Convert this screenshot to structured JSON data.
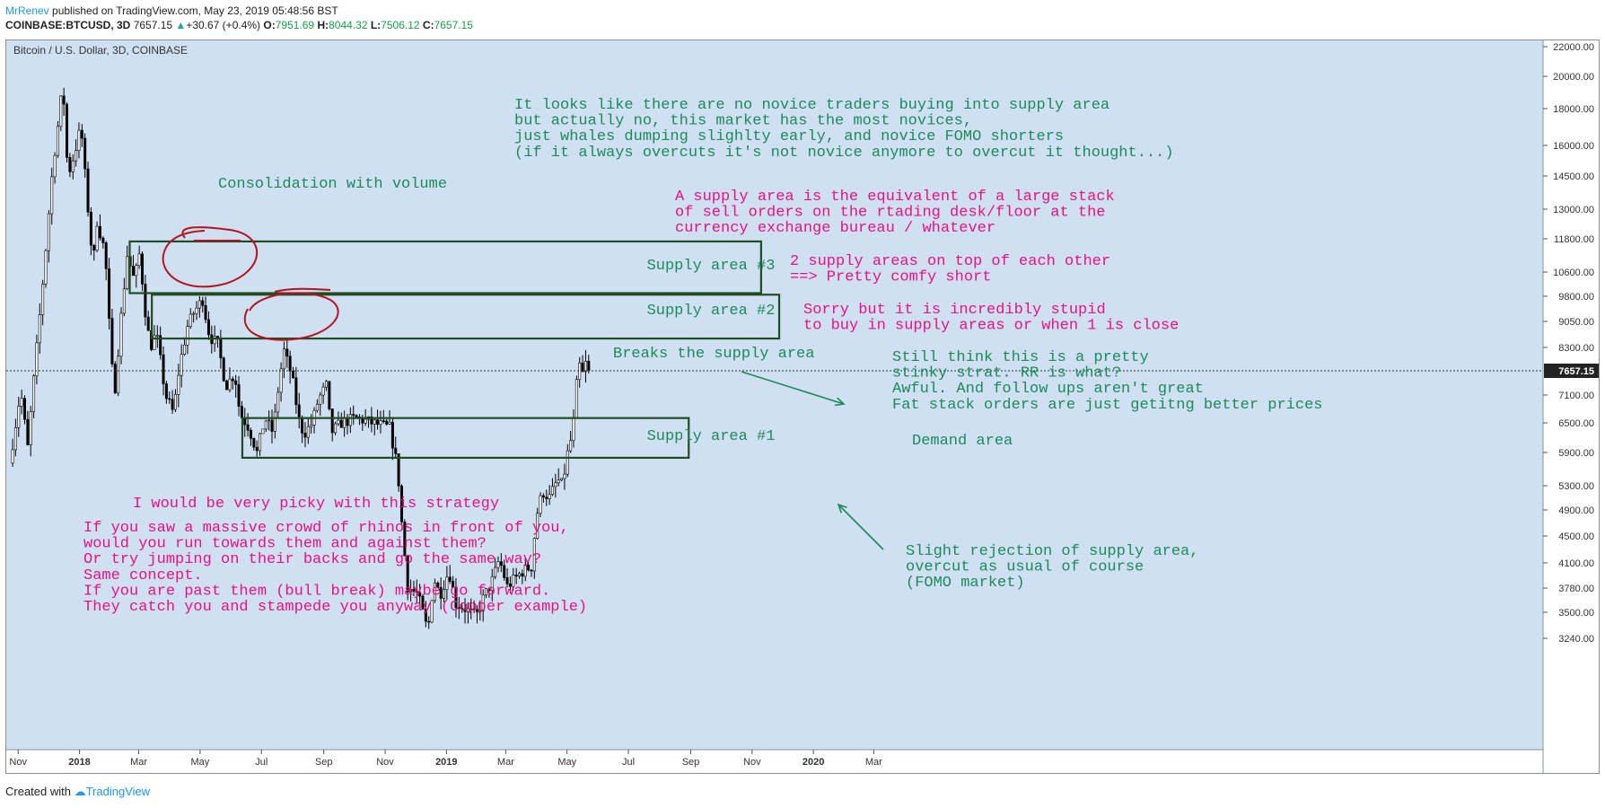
{
  "header": {
    "author": "MrRenev",
    "published": " published on TradingView.com, May 23, 2019 05:48:56 BST",
    "symbol": "COINBASE:BTCUSD, 3D ",
    "last": "7657.15",
    "change_arrow": "▲",
    "change": "+30.67 (+0.4%)",
    "o_label": " O:",
    "o": "7951.69",
    "h_label": " H:",
    "h": "8044.32",
    "l_label": " L:",
    "l": "7506.12",
    "c_label": " C:",
    "c": "7657.15"
  },
  "chart_title": "Bitcoin / U.S. Dollar, 3D, COINBASE",
  "footer": {
    "created": "Created with ",
    "brand": "TradingView"
  },
  "chart_data": {
    "type": "candlestick",
    "title": "Bitcoin / U.S. Dollar, 3D, COINBASE",
    "x_ticks": [
      "Nov",
      "2018",
      "Mar",
      "May",
      "Jul",
      "Sep",
      "Nov",
      "2019",
      "Mar",
      "May",
      "Jul",
      "Sep",
      "Nov",
      "2020",
      "Mar"
    ],
    "y_ticks": [
      "22000.00",
      "20000.00",
      "18000.00",
      "16000.00",
      "14500.00",
      "13000.00",
      "11800.00",
      "10600.00",
      "9800.00",
      "9050.00",
      "8300.00",
      "7100.00",
      "6500.00",
      "5900.00",
      "5300.00",
      "4900.00",
      "4500.00",
      "4100.00",
      "3780.00",
      "3500.00",
      "3240.00"
    ],
    "y_tick_values": [
      22000,
      20000,
      18000,
      16000,
      14500,
      13000,
      11800,
      10600,
      9800,
      9050,
      8300,
      7100,
      6500,
      5900,
      5300,
      4900,
      4500,
      4100,
      3780,
      3500,
      3240
    ],
    "scale": "log",
    "y_range": [
      3000,
      23000
    ],
    "last_price_label": "7657.15",
    "last_price": 7657.15,
    "price_path": [
      [
        "2017-10-25",
        5700
      ],
      [
        "2017-11-05",
        7200
      ],
      [
        "2017-11-12",
        6000
      ],
      [
        "2017-11-20",
        8000
      ],
      [
        "2017-11-29",
        11000
      ],
      [
        "2017-12-07",
        15000
      ],
      [
        "2017-12-12",
        17000
      ],
      [
        "2017-12-17",
        19500
      ],
      [
        "2017-12-22",
        14500
      ],
      [
        "2017-12-28",
        15500
      ],
      [
        "2018-01-04",
        17000
      ],
      [
        "2018-01-10",
        13500
      ],
      [
        "2018-01-16",
        10800
      ],
      [
        "2018-01-20",
        12500
      ],
      [
        "2018-01-28",
        11300
      ],
      [
        "2018-02-02",
        8500
      ],
      [
        "2018-02-06",
        7000
      ],
      [
        "2018-02-12",
        8900
      ],
      [
        "2018-02-19",
        11200
      ],
      [
        "2018-02-26",
        10300
      ],
      [
        "2018-03-04",
        11400
      ],
      [
        "2018-03-07",
        9800
      ],
      [
        "2018-03-14",
        8300
      ],
      [
        "2018-03-20",
        8700
      ],
      [
        "2018-03-29",
        7100
      ],
      [
        "2018-04-06",
        6700
      ],
      [
        "2018-04-12",
        7800
      ],
      [
        "2018-04-20",
        8900
      ],
      [
        "2018-04-26",
        9300
      ],
      [
        "2018-05-05",
        9700
      ],
      [
        "2018-05-12",
        8600
      ],
      [
        "2018-05-20",
        8400
      ],
      [
        "2018-05-28",
        7300
      ],
      [
        "2018-06-06",
        7600
      ],
      [
        "2018-06-11",
        6700
      ],
      [
        "2018-06-20",
        6400
      ],
      [
        "2018-06-28",
        5900
      ],
      [
        "2018-07-06",
        6600
      ],
      [
        "2018-07-14",
        6300
      ],
      [
        "2018-07-20",
        7400
      ],
      [
        "2018-07-25",
        8200
      ],
      [
        "2018-08-02",
        7500
      ],
      [
        "2018-08-10",
        6400
      ],
      [
        "2018-08-15",
        6300
      ],
      [
        "2018-08-22",
        6500
      ],
      [
        "2018-08-28",
        7000
      ],
      [
        "2018-09-05",
        7300
      ],
      [
        "2018-09-10",
        6300
      ],
      [
        "2018-09-20",
        6500
      ],
      [
        "2018-10-05",
        6600
      ],
      [
        "2018-10-20",
        6500
      ],
      [
        "2018-11-07",
        6400
      ],
      [
        "2018-11-15",
        5600
      ],
      [
        "2018-11-20",
        4500
      ],
      [
        "2018-11-25",
        3800
      ],
      [
        "2018-12-05",
        3700
      ],
      [
        "2018-12-15",
        3300
      ],
      [
        "2018-12-21",
        3900
      ],
      [
        "2018-12-27",
        3700
      ],
      [
        "2019-01-05",
        4000
      ],
      [
        "2019-01-12",
        3600
      ],
      [
        "2019-01-20",
        3550
      ],
      [
        "2019-02-01",
        3450
      ],
      [
        "2019-02-08",
        3650
      ],
      [
        "2019-02-18",
        3900
      ],
      [
        "2019-02-24",
        4150
      ],
      [
        "2019-03-04",
        3800
      ],
      [
        "2019-03-12",
        3900
      ],
      [
        "2019-03-20",
        4000
      ],
      [
        "2019-03-28",
        4050
      ],
      [
        "2019-04-02",
        4800
      ],
      [
        "2019-04-08",
        5200
      ],
      [
        "2019-04-15",
        5100
      ],
      [
        "2019-04-23",
        5400
      ],
      [
        "2019-04-28",
        5300
      ],
      [
        "2019-05-02",
        5800
      ],
      [
        "2019-05-08",
        6300
      ],
      [
        "2019-05-11",
        7000
      ],
      [
        "2019-05-14",
        8000
      ],
      [
        "2019-05-17",
        7400
      ],
      [
        "2019-05-20",
        7950
      ],
      [
        "2019-05-23",
        7657
      ]
    ],
    "zones": [
      {
        "label": "Supply area #3",
        "low": 9900,
        "high": 11700,
        "from": "2018-02-20",
        "to": "2019-11-10"
      },
      {
        "label": "Supply area #2",
        "low": 8550,
        "high": 9850,
        "from": "2018-03-14",
        "to": "2019-11-28"
      },
      {
        "label": "Supply area #1",
        "low": 5800,
        "high": 6600,
        "from": "2018-06-12",
        "to": "2019-08-30"
      }
    ],
    "zone_note_demand": "Demand area",
    "annotations": {
      "green_top": [
        "It looks like there are no novice traders buying into supply area",
        "but actually no, this market has the most novices,",
        "just whales dumping slighlty early, and novice FOMO shorters",
        "(if it always overcuts it's not novice anymore to overcut it thought...)"
      ],
      "consolidation": "Consolidation with volume",
      "supply_def": [
        "A supply area is the equivalent of a large stack",
        "of sell orders on the rtading desk/floor at the",
        "currency exchange bureau / whatever"
      ],
      "two_areas": [
        "2 supply areas on top of each other",
        "==> Pretty comfy short"
      ],
      "sorry": [
        "Sorry but it is incredibly stupid",
        "to buy in supply areas or when 1 is close"
      ],
      "breaks": "Breaks the supply area",
      "still": [
        "Still think this is a pretty",
        "stinky strat. RR is what?",
        "Awful. And follow ups aren't great",
        "Fat stack orders are just getitng better prices"
      ],
      "picky": "I would be very picky with this strategy",
      "rhinos": [
        "If you saw a massive crowd of rhinos in front of you,",
        "would you run towards them and against them?",
        "Or try jumping on their backs and go the same way?",
        "Same concept.",
        "If you are past them (bull break) maybe go forward.",
        "They catch you and stampede you anyway (Copper example)"
      ],
      "slight": [
        "Slight rejection of supply area,",
        "overcut as usual of course",
        "(FOMO market)"
      ]
    }
  },
  "colors": {
    "background": "#cfe0f3",
    "green_text": "#1d8a5a",
    "pink_text": "#e8117f",
    "zone_border": "#1f4d1f",
    "red_circle": "#b3141e",
    "candle_up": "#ffffff",
    "candle_down": "#000000"
  }
}
